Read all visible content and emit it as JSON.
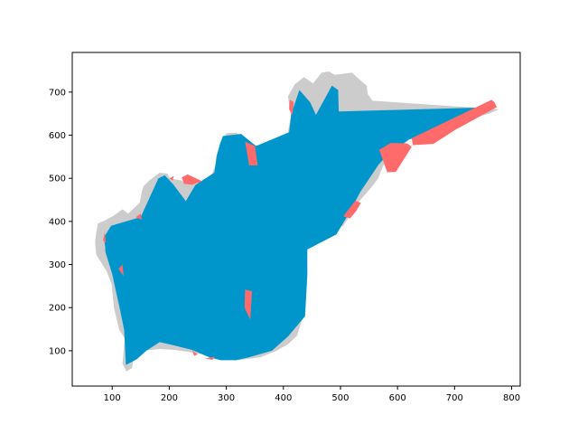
{
  "chart_data": {
    "type": "area",
    "title": "",
    "xlabel": "",
    "ylabel": "",
    "xlim": [
      30,
      815
    ],
    "ylim": [
      18,
      792
    ],
    "xticks": [
      100,
      200,
      300,
      400,
      500,
      600,
      700,
      800
    ],
    "yticks": [
      100,
      200,
      300,
      400,
      500,
      600,
      700
    ],
    "xtick_labels": [
      "100",
      "200",
      "300",
      "400",
      "500",
      "600",
      "700",
      "800"
    ],
    "ytick_labels": [
      "100",
      "200",
      "300",
      "400",
      "500",
      "600",
      "700"
    ],
    "grid": false,
    "legend": "none",
    "colors": {
      "reference": "#cccccc",
      "prediction": "#0096cc",
      "error": "#ff6b6b"
    },
    "series": [
      {
        "role": "reference",
        "points": [
          [
            70,
            352
          ],
          [
            72,
            373
          ],
          [
            75,
            395
          ],
          [
            87,
            402
          ],
          [
            102,
            413
          ],
          [
            118,
            428
          ],
          [
            128,
            418
          ],
          [
            148,
            443
          ],
          [
            152,
            470
          ],
          [
            155,
            482
          ],
          [
            165,
            495
          ],
          [
            183,
            513
          ],
          [
            197,
            511
          ],
          [
            201,
            500
          ],
          [
            221,
            495
          ],
          [
            236,
            485
          ],
          [
            259,
            490
          ],
          [
            275,
            511
          ],
          [
            288,
            552
          ],
          [
            291,
            582
          ],
          [
            300,
            605
          ],
          [
            318,
            606
          ],
          [
            337,
            584
          ],
          [
            355,
            568
          ],
          [
            372,
            575
          ],
          [
            407,
            600
          ],
          [
            413,
            645
          ],
          [
            408,
            690
          ],
          [
            420,
            718
          ],
          [
            436,
            735
          ],
          [
            452,
            720
          ],
          [
            467,
            745
          ],
          [
            480,
            748
          ],
          [
            490,
            740
          ],
          [
            520,
            745
          ],
          [
            546,
            715
          ],
          [
            548,
            695
          ],
          [
            556,
            680
          ],
          [
            778,
            660
          ],
          [
            760,
            650
          ],
          [
            640,
            610
          ],
          [
            617,
            586
          ],
          [
            604,
            570
          ],
          [
            575,
            530
          ],
          [
            566,
            500
          ],
          [
            555,
            480
          ],
          [
            533,
            447
          ],
          [
            520,
            420
          ],
          [
            505,
            390
          ],
          [
            475,
            372
          ],
          [
            445,
            352
          ],
          [
            435,
            317
          ],
          [
            442,
            282
          ],
          [
            440,
            250
          ],
          [
            438,
            215
          ],
          [
            434,
            180
          ],
          [
            430,
            160
          ],
          [
            424,
            135
          ],
          [
            408,
            115
          ],
          [
            388,
            100
          ],
          [
            360,
            85
          ],
          [
            320,
            78
          ],
          [
            290,
            80
          ],
          [
            270,
            90
          ],
          [
            245,
            95
          ],
          [
            210,
            102
          ],
          [
            185,
            104
          ],
          [
            152,
            100
          ],
          [
            137,
            82
          ],
          [
            135,
            60
          ],
          [
            125,
            52
          ],
          [
            118,
            70
          ],
          [
            122,
            128
          ],
          [
            112,
            150
          ],
          [
            103,
            200
          ],
          [
            99,
            255
          ],
          [
            90,
            285
          ],
          [
            72,
            323
          ]
        ]
      },
      {
        "role": "prediction",
        "points": [
          [
            85,
            362
          ],
          [
            98,
            390
          ],
          [
            150,
            410
          ],
          [
            181,
            500
          ],
          [
            192,
            507
          ],
          [
            207,
            486
          ],
          [
            223,
            458
          ],
          [
            229,
            447
          ],
          [
            246,
            485
          ],
          [
            279,
            513
          ],
          [
            283,
            552
          ],
          [
            289,
            580
          ],
          [
            294,
            598
          ],
          [
            326,
            603
          ],
          [
            352,
            575
          ],
          [
            410,
            607
          ],
          [
            414,
            650
          ],
          [
            428,
            705
          ],
          [
            447,
            676
          ],
          [
            457,
            647
          ],
          [
            485,
            715
          ],
          [
            496,
            705
          ],
          [
            497,
            655
          ],
          [
            770,
            665
          ],
          [
            700,
            620
          ],
          [
            620,
            590
          ],
          [
            583,
            555
          ],
          [
            567,
            532
          ],
          [
            535,
            469
          ],
          [
            511,
            410
          ],
          [
            493,
            370
          ],
          [
            442,
            335
          ],
          [
            442,
            276
          ],
          [
            440,
            230
          ],
          [
            438,
            180
          ],
          [
            424,
            158
          ],
          [
            408,
            133
          ],
          [
            380,
            100
          ],
          [
            340,
            85
          ],
          [
            317,
            78
          ],
          [
            290,
            78
          ],
          [
            270,
            85
          ],
          [
            240,
            102
          ],
          [
            210,
            112
          ],
          [
            183,
            120
          ],
          [
            160,
            100
          ],
          [
            143,
            80
          ],
          [
            124,
            67
          ],
          [
            121,
            148
          ],
          [
            113,
            200
          ],
          [
            100,
            278
          ],
          [
            88,
            330
          ],
          [
            88,
            340
          ]
        ]
      },
      {
        "role": "error",
        "regions": [
          [
            [
              87,
              375
            ],
            [
              89,
              350
            ],
            [
              84,
              355
            ]
          ],
          [
            [
              120,
              273
            ],
            [
              118,
              300
            ],
            [
              111,
              290
            ]
          ],
          [
            [
              141,
              410
            ],
            [
              150,
              418
            ],
            [
              152,
              404
            ]
          ],
          [
            [
              200,
              500
            ],
            [
              208,
              505
            ],
            [
              206,
              495
            ]
          ],
          [
            [
              222,
              502
            ],
            [
              232,
              509
            ],
            [
              258,
              493
            ],
            [
              240,
              485
            ],
            [
              226,
              487
            ]
          ],
          [
            [
              240,
              100
            ],
            [
              250,
              92
            ],
            [
              244,
              88
            ]
          ],
          [
            [
              262,
              82
            ],
            [
              280,
              86
            ],
            [
              276,
              79
            ]
          ],
          [
            [
              333,
              242
            ],
            [
              332,
              200
            ],
            [
              342,
              172
            ],
            [
              345,
              238
            ]
          ],
          [
            [
              340,
              530
            ],
            [
              355,
              530
            ],
            [
              350,
              575
            ],
            [
              333,
              585
            ]
          ],
          [
            [
              410,
              660
            ],
            [
              416,
              648
            ],
            [
              418,
              677
            ],
            [
              411,
              682
            ]
          ],
          [
            [
              528,
              425
            ],
            [
              536,
              443
            ],
            [
              526,
              448
            ],
            [
              505,
              412
            ],
            [
              517,
              407
            ]
          ],
          [
            [
              582,
              514
            ],
            [
              597,
              515
            ],
            [
              625,
              573
            ],
            [
              617,
              581
            ],
            [
              588,
              582
            ],
            [
              568,
              566
            ]
          ],
          [
            [
              627,
              577
            ],
            [
              663,
              580
            ],
            [
              702,
              613
            ],
            [
              774,
              665
            ],
            [
              770,
              676
            ],
            [
              765,
              682
            ],
            [
              625,
              593
            ]
          ]
        ]
      }
    ]
  }
}
